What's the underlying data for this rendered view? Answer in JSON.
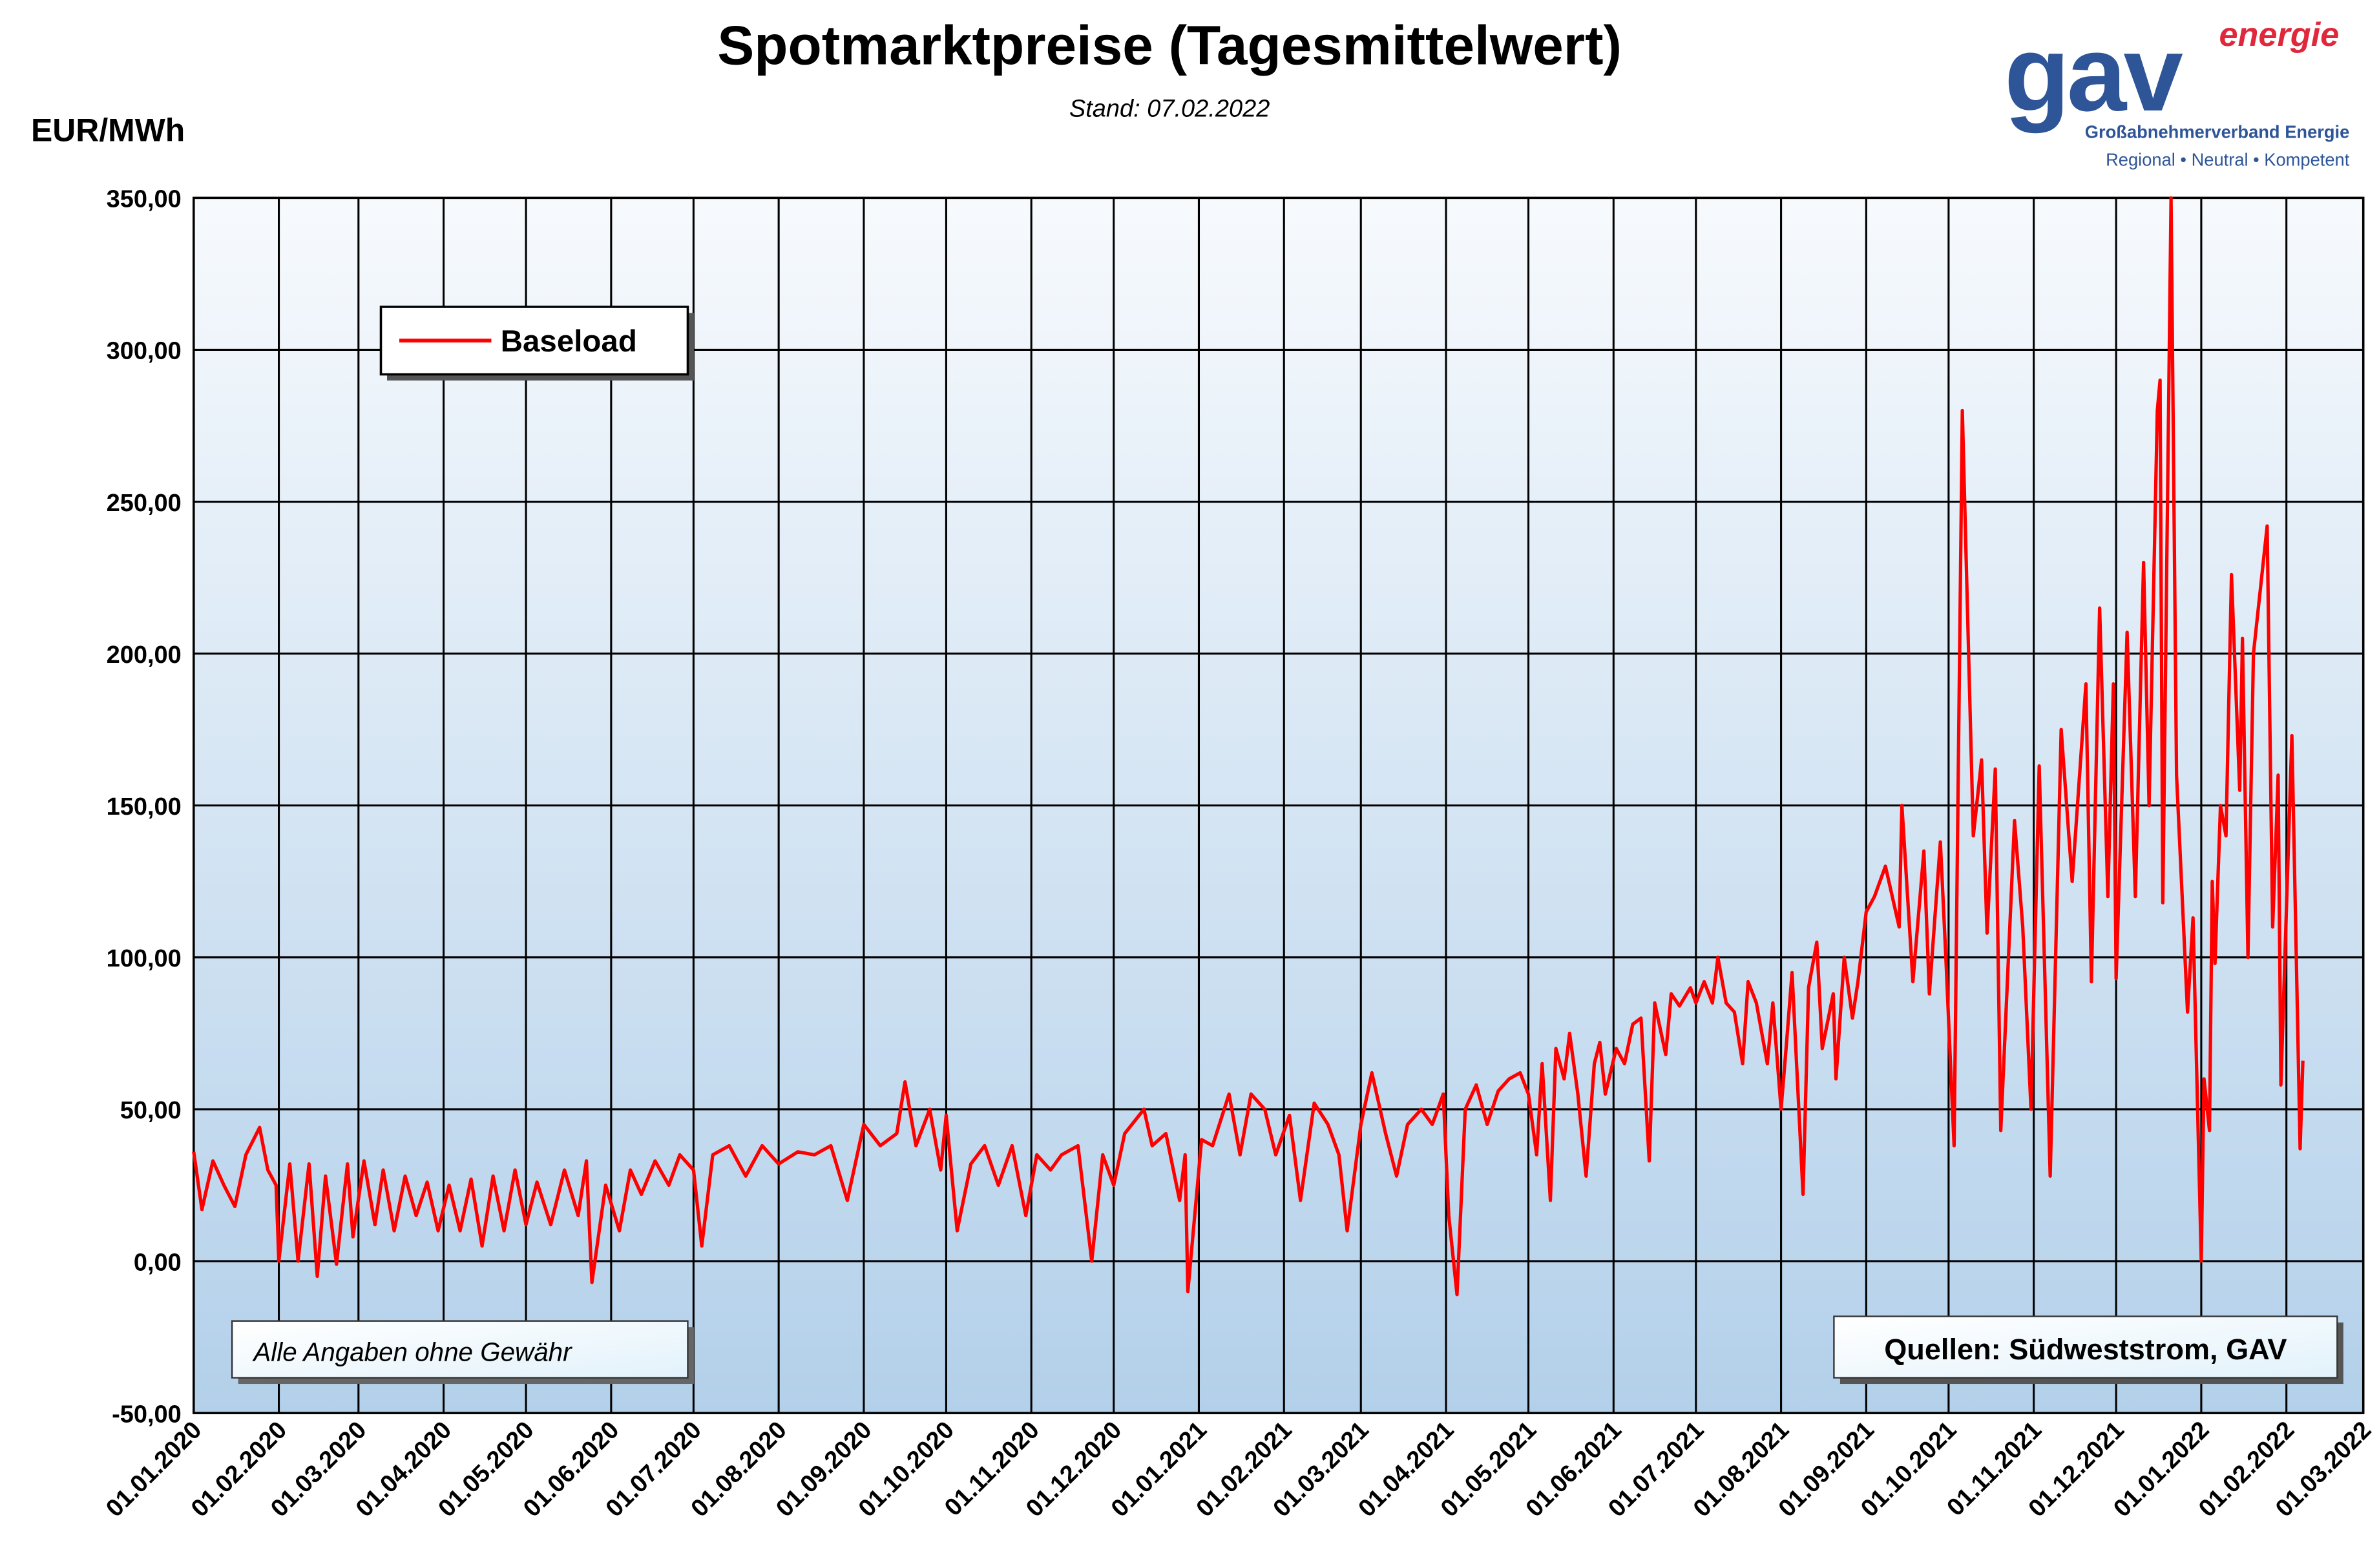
{
  "chart_data": {
    "type": "line",
    "title": "Spotmarktpreise (Tagesmittelwert)",
    "subtitle": "Stand: 07.02.2022",
    "y_label": "EUR/MWh",
    "annotations": [
      "Alle Angaben ohne Gewähr",
      "Quellen: Südweststrom,  GAV"
    ],
    "logo": {
      "name": "gav",
      "suffix": "energie",
      "line1": "Großabnehmerverband Energie",
      "line2": "Regional • Neutral • Kompetent"
    },
    "grid": true,
    "legend": "top-left",
    "xlim": [
      "01.01.2020",
      "01.03.2022"
    ],
    "xticks": [
      "01.01.2020",
      "01.02.2020",
      "01.03.2020",
      "01.04.2020",
      "01.05.2020",
      "01.06.2020",
      "01.07.2020",
      "01.08.2020",
      "01.09.2020",
      "01.10.2020",
      "01.11.2020",
      "01.12.2020",
      "01.01.2021",
      "01.02.2021",
      "01.03.2021",
      "01.04.2021",
      "01.05.2021",
      "01.06.2021",
      "01.07.2021",
      "01.08.2021",
      "01.09.2021",
      "01.10.2021",
      "01.11.2021",
      "01.12.2021",
      "01.01.2022",
      "01.02.2022",
      "01.03.2022"
    ],
    "ylim": [
      -50,
      350
    ],
    "yticks": [
      {
        "value": -50,
        "label": "-50,00"
      },
      {
        "value": 0,
        "label": "0,00"
      },
      {
        "value": 50,
        "label": "50,00"
      },
      {
        "value": 100,
        "label": "100,00"
      },
      {
        "value": 150,
        "label": "150,00"
      },
      {
        "value": 200,
        "label": "200,00"
      },
      {
        "value": 250,
        "label": "250,00"
      },
      {
        "value": 300,
        "label": "300,00"
      },
      {
        "value": 350,
        "label": "350,00"
      }
    ],
    "x": [
      "01.01.2020",
      "04.01.2020",
      "08.01.2020",
      "12.01.2020",
      "16.01.2020",
      "20.01.2020",
      "25.01.2020",
      "28.01.2020",
      "31.01.2020",
      "01.02.2020",
      "05.02.2020",
      "08.02.2020",
      "12.02.2020",
      "15.02.2020",
      "18.02.2020",
      "22.02.2020",
      "26.02.2020",
      "28.02.2020",
      "03.03.2020",
      "07.03.2020",
      "10.03.2020",
      "14.03.2020",
      "18.03.2020",
      "22.03.2020",
      "26.03.2020",
      "30.03.2020",
      "03.04.2020",
      "07.04.2020",
      "11.04.2020",
      "15.04.2020",
      "19.04.2020",
      "23.04.2020",
      "27.04.2020",
      "01.05.2020",
      "05.05.2020",
      "10.05.2020",
      "15.05.2020",
      "20.05.2020",
      "23.05.2020",
      "25.05.2020",
      "30.05.2020",
      "04.06.2020",
      "08.06.2020",
      "12.06.2020",
      "17.06.2020",
      "22.06.2020",
      "26.06.2020",
      "01.07.2020",
      "04.07.2020",
      "08.07.2020",
      "14.07.2020",
      "20.07.2020",
      "26.07.2020",
      "01.08.2020",
      "08.08.2020",
      "14.08.2020",
      "20.08.2020",
      "26.08.2020",
      "01.09.2020",
      "07.09.2020",
      "13.09.2020",
      "16.09.2020",
      "20.09.2020",
      "25.09.2020",
      "29.09.2020",
      "01.10.2020",
      "05.10.2020",
      "10.10.2020",
      "15.10.2020",
      "20.10.2020",
      "25.10.2020",
      "30.10.2020",
      "03.11.2020",
      "08.11.2020",
      "12.11.2020",
      "18.11.2020",
      "23.11.2020",
      "27.11.2020",
      "01.12.2020",
      "05.12.2020",
      "12.12.2020",
      "15.12.2020",
      "20.12.2020",
      "25.12.2020",
      "27.12.2020",
      "28.12.2020",
      "02.01.2021",
      "06.01.2021",
      "12.01.2021",
      "16.01.2021",
      "20.01.2021",
      "25.01.2021",
      "29.01.2021",
      "03.02.2021",
      "07.02.2021",
      "12.02.2021",
      "17.02.2021",
      "21.02.2021",
      "24.02.2021",
      "01.03.2021",
      "05.03.2021",
      "10.03.2021",
      "14.03.2021",
      "18.03.2021",
      "23.03.2021",
      "27.03.2021",
      "31.03.2021",
      "02.04.2021",
      "05.04.2021",
      "08.04.2021",
      "12.04.2021",
      "16.04.2021",
      "20.04.2021",
      "24.04.2021",
      "28.04.2021",
      "01.05.2021",
      "04.05.2021",
      "06.05.2021",
      "09.05.2021",
      "11.05.2021",
      "14.05.2021",
      "16.05.2021",
      "19.05.2021",
      "22.05.2021",
      "25.05.2021",
      "27.05.2021",
      "29.05.2021",
      "02.06.2021",
      "05.06.2021",
      "08.06.2021",
      "11.06.2021",
      "14.06.2021",
      "16.06.2021",
      "20.06.2021",
      "22.06.2021",
      "25.06.2021",
      "29.06.2021",
      "01.07.2021",
      "04.07.2021",
      "07.07.2021",
      "09.07.2021",
      "12.07.2021",
      "15.07.2021",
      "18.07.2021",
      "20.07.2021",
      "23.07.2021",
      "27.07.2021",
      "29.07.2021",
      "01.08.2021",
      "03.08.2021",
      "05.08.2021",
      "09.08.2021",
      "11.08.2021",
      "14.08.2021",
      "16.08.2021",
      "20.08.2021",
      "21.08.2021",
      "24.08.2021",
      "27.08.2021",
      "29.08.2021",
      "01.09.2021",
      "04.09.2021",
      "08.09.2021",
      "13.09.2021",
      "14.09.2021",
      "18.09.2021",
      "22.09.2021",
      "24.09.2021",
      "28.09.2021",
      "30.09.2021",
      "03.10.2021",
      "06.10.2021",
      "10.10.2021",
      "13.10.2021",
      "15.10.2021",
      "18.10.2021",
      "20.10.2021",
      "25.10.2021",
      "28.10.2021",
      "31.10.2021",
      "03.11.2021",
      "07.11.2021",
      "11.11.2021",
      "15.11.2021",
      "20.11.2021",
      "22.11.2021",
      "25.11.2021",
      "28.11.2021",
      "30.11.2021",
      "01.12.2021",
      "05.12.2021",
      "08.12.2021",
      "11.12.2021",
      "13.12.2021",
      "16.12.2021",
      "17.12.2021",
      "18.12.2021",
      "21.12.2021",
      "23.12.2021",
      "27.12.2021",
      "29.12.2021",
      "01.01.2022",
      "02.01.2022",
      "04.01.2022",
      "05.01.2022",
      "06.01.2022",
      "08.01.2022",
      "10.01.2022",
      "12.01.2022",
      "15.01.2022",
      "16.01.2022",
      "18.01.2022",
      "20.01.2022",
      "25.01.2022",
      "27.01.2022",
      "29.01.2022",
      "30.01.2022",
      "03.02.2022",
      "06.02.2022",
      "07.02.2022"
    ],
    "series": [
      {
        "name": "Baseload",
        "color": "#ff0000",
        "values": [
          36,
          17,
          33,
          25,
          18,
          35,
          44,
          30,
          25,
          0,
          32,
          0,
          32,
          -5,
          28,
          -1,
          32,
          8,
          33,
          12,
          30,
          10,
          28,
          15,
          26,
          10,
          25,
          10,
          27,
          5,
          28,
          10,
          30,
          12,
          26,
          12,
          30,
          15,
          33,
          -7,
          25,
          10,
          30,
          22,
          33,
          25,
          35,
          30,
          5,
          35,
          38,
          28,
          38,
          32,
          36,
          35,
          38,
          20,
          45,
          38,
          42,
          59,
          38,
          50,
          30,
          48,
          10,
          32,
          38,
          25,
          38,
          15,
          35,
          30,
          35,
          38,
          0,
          35,
          25,
          42,
          50,
          38,
          42,
          20,
          35,
          -10,
          40,
          38,
          55,
          35,
          55,
          50,
          35,
          48,
          20,
          52,
          45,
          35,
          10,
          45,
          62,
          42,
          28,
          45,
          50,
          45,
          55,
          15,
          -11,
          50,
          58,
          45,
          56,
          60,
          62,
          55,
          35,
          65,
          20,
          70,
          60,
          75,
          55,
          28,
          65,
          72,
          55,
          70,
          65,
          78,
          80,
          33,
          85,
          68,
          88,
          84,
          90,
          85,
          92,
          85,
          100,
          85,
          82,
          65,
          92,
          85,
          65,
          85,
          50,
          72,
          95,
          22,
          90,
          105,
          70,
          88,
          60,
          100,
          80,
          92,
          115,
          120,
          130,
          110,
          150,
          92,
          135,
          88,
          138,
          100,
          38,
          280,
          140,
          165,
          108,
          162,
          43,
          145,
          110,
          50,
          163,
          28,
          175,
          125,
          190,
          92,
          215,
          120,
          190,
          93,
          207,
          120,
          230,
          150,
          280,
          290,
          118,
          350,
          160,
          82,
          113,
          0,
          60,
          43,
          125,
          98,
          150,
          140,
          226,
          155,
          205,
          100,
          200,
          242,
          110,
          160,
          58,
          173,
          37,
          66
        ]
      }
    ]
  }
}
